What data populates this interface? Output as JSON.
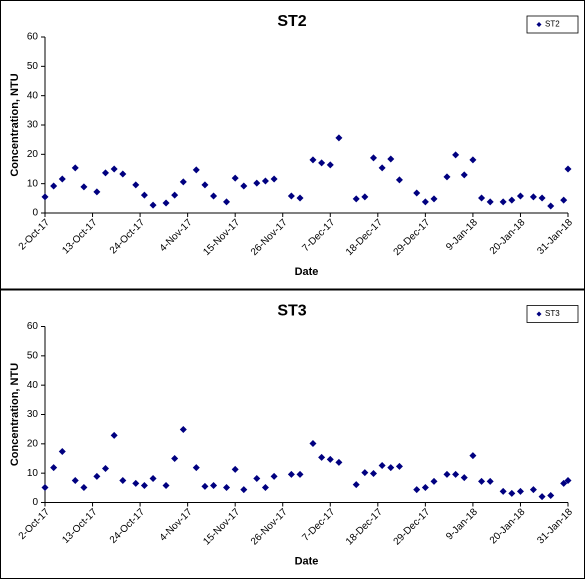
{
  "chart_data": [
    {
      "type": "scatter",
      "title": "ST2",
      "x_label": "Date",
      "y_label": "Concentration, NTU",
      "xlim": [
        "2017-10-02",
        "2018-01-31"
      ],
      "xticks": [
        {
          "value": "2017-10-02",
          "label": "2-Oct-17"
        },
        {
          "value": "2017-10-13",
          "label": "13-Oct-17"
        },
        {
          "value": "2017-10-24",
          "label": "24-Oct-17"
        },
        {
          "value": "2017-11-04",
          "label": "4-Nov-17"
        },
        {
          "value": "2017-11-15",
          "label": "15-Nov-17"
        },
        {
          "value": "2017-11-26",
          "label": "26-Nov-17"
        },
        {
          "value": "2017-12-07",
          "label": "7-Dec-17"
        },
        {
          "value": "2017-12-18",
          "label": "18-Dec-17"
        },
        {
          "value": "2017-12-29",
          "label": "29-Dec-17"
        },
        {
          "value": "2018-01-09",
          "label": "9-Jan-18"
        },
        {
          "value": "2018-01-20",
          "label": "20-Jan-18"
        },
        {
          "value": "2018-01-31",
          "label": "31-Jan-18"
        }
      ],
      "ylim": [
        0,
        60
      ],
      "yticks": [
        0,
        10,
        20,
        30,
        40,
        50,
        60
      ],
      "grid": false,
      "legend": "top-right",
      "series": [
        {
          "name": "ST2",
          "color": "#000080",
          "x": [
            "2017-10-02",
            "2017-10-04",
            "2017-10-06",
            "2017-10-09",
            "2017-10-11",
            "2017-10-14",
            "2017-10-16",
            "2017-10-18",
            "2017-10-20",
            "2017-10-23",
            "2017-10-25",
            "2017-10-27",
            "2017-10-30",
            "2017-11-01",
            "2017-11-03",
            "2017-11-06",
            "2017-11-08",
            "2017-11-10",
            "2017-11-13",
            "2017-11-15",
            "2017-11-17",
            "2017-11-20",
            "2017-11-22",
            "2017-11-24",
            "2017-11-28",
            "2017-11-30",
            "2017-12-03",
            "2017-12-05",
            "2017-12-07",
            "2017-12-09",
            "2017-12-13",
            "2017-12-15",
            "2017-12-17",
            "2017-12-19",
            "2017-12-21",
            "2017-12-23",
            "2017-12-27",
            "2017-12-29",
            "2017-12-31",
            "2018-01-03",
            "2018-01-05",
            "2018-01-07",
            "2018-01-09",
            "2018-01-11",
            "2018-01-13",
            "2018-01-16",
            "2018-01-18",
            "2018-01-20",
            "2018-01-23",
            "2018-01-25",
            "2018-01-27",
            "2018-01-30",
            "2018-01-31"
          ],
          "values": [
            5.5,
            9.2,
            11.6,
            15.4,
            8.9,
            7.2,
            13.7,
            15,
            13.3,
            9.6,
            6.1,
            2.7,
            3.4,
            6.1,
            10.6,
            14.7,
            9.6,
            5.8,
            3.8,
            11.9,
            9.2,
            10.2,
            10.9,
            11.6,
            5.8,
            5.1,
            18.1,
            17.1,
            16.4,
            25.6,
            4.8,
            5.5,
            18.8,
            15.4,
            18.4,
            11.3,
            6.8,
            3.8,
            4.8,
            12.3,
            19.8,
            13,
            18.1,
            5.1,
            3.8,
            3.8,
            4.4,
            5.8,
            5.5,
            5.1,
            2.4,
            4.4,
            15
          ]
        }
      ]
    },
    {
      "type": "scatter",
      "title": "ST3",
      "x_label": "Date",
      "y_label": "Concentration, NTU",
      "xlim": [
        "2017-10-02",
        "2018-01-31"
      ],
      "xticks": [
        {
          "value": "2017-10-02",
          "label": "2-Oct-17"
        },
        {
          "value": "2017-10-13",
          "label": "13-Oct-17"
        },
        {
          "value": "2017-10-24",
          "label": "24-Oct-17"
        },
        {
          "value": "2017-11-04",
          "label": "4-Nov-17"
        },
        {
          "value": "2017-11-15",
          "label": "15-Nov-17"
        },
        {
          "value": "2017-11-26",
          "label": "26-Nov-17"
        },
        {
          "value": "2017-12-07",
          "label": "7-Dec-17"
        },
        {
          "value": "2017-12-18",
          "label": "18-Dec-17"
        },
        {
          "value": "2017-12-29",
          "label": "29-Dec-17"
        },
        {
          "value": "2018-01-09",
          "label": "9-Jan-18"
        },
        {
          "value": "2018-01-20",
          "label": "20-Jan-18"
        },
        {
          "value": "2018-01-31",
          "label": "31-Jan-18"
        }
      ],
      "ylim": [
        0,
        60
      ],
      "yticks": [
        0,
        10,
        20,
        30,
        40,
        50,
        60
      ],
      "grid": false,
      "legend": "top-right",
      "series": [
        {
          "name": "ST3",
          "color": "#000080",
          "x": [
            "2017-10-02",
            "2017-10-04",
            "2017-10-06",
            "2017-10-09",
            "2017-10-11",
            "2017-10-14",
            "2017-10-16",
            "2017-10-18",
            "2017-10-20",
            "2017-10-23",
            "2017-10-25",
            "2017-10-27",
            "2017-10-30",
            "2017-11-01",
            "2017-11-03",
            "2017-11-06",
            "2017-11-08",
            "2017-11-10",
            "2017-11-13",
            "2017-11-15",
            "2017-11-17",
            "2017-11-20",
            "2017-11-22",
            "2017-11-24",
            "2017-11-28",
            "2017-11-30",
            "2017-12-03",
            "2017-12-05",
            "2017-12-07",
            "2017-12-09",
            "2017-12-13",
            "2017-12-15",
            "2017-12-17",
            "2017-12-19",
            "2017-12-21",
            "2017-12-23",
            "2017-12-27",
            "2017-12-29",
            "2017-12-31",
            "2018-01-03",
            "2018-01-05",
            "2018-01-07",
            "2018-01-09",
            "2018-01-11",
            "2018-01-13",
            "2018-01-16",
            "2018-01-18",
            "2018-01-20",
            "2018-01-23",
            "2018-01-25",
            "2018-01-27",
            "2018-01-30",
            "2018-01-31"
          ],
          "values": [
            5.1,
            11.9,
            17.4,
            7.5,
            5.1,
            8.9,
            11.6,
            22.9,
            7.5,
            6.5,
            5.8,
            8.2,
            5.8,
            15,
            24.9,
            11.9,
            5.5,
            5.8,
            5.1,
            11.3,
            4.4,
            8.2,
            5.1,
            8.9,
            9.6,
            9.6,
            20.1,
            15.4,
            14.7,
            13.7,
            6.1,
            10.2,
            9.9,
            12.6,
            11.9,
            12.3,
            4.4,
            5.1,
            7.2,
            9.6,
            9.6,
            8.5,
            16,
            7.2,
            7.2,
            3.8,
            3.1,
            3.8,
            4.4,
            2,
            2.4,
            6.5,
            7.5
          ]
        }
      ]
    }
  ]
}
